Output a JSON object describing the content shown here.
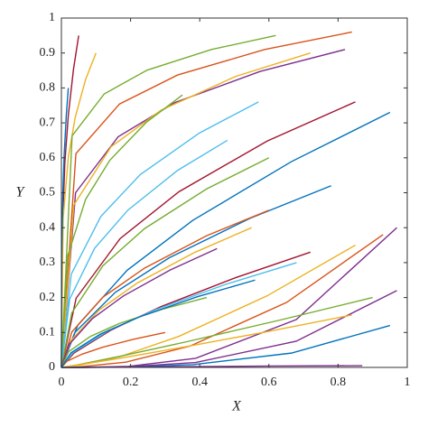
{
  "chart_data": {
    "type": "line",
    "xlabel": "X",
    "ylabel": "Y",
    "xlim": [
      0,
      1
    ],
    "ylim": [
      0,
      1
    ],
    "xticks": [
      0,
      0.2,
      0.4,
      0.6,
      0.8,
      1
    ],
    "yticks": [
      0,
      0.1,
      0.2,
      0.3,
      0.4,
      0.5,
      0.6,
      0.7,
      0.8,
      0.9,
      1
    ],
    "series": [
      {
        "color": "#A2142F",
        "x": [
          0,
          0.0025,
          0.01,
          0.02,
          0.035,
          0.05
        ],
        "values": [
          0,
          0.387,
          0.586,
          0.722,
          0.854,
          0.95
        ]
      },
      {
        "color": "#EDB120",
        "x": [
          0,
          0.005,
          0.02,
          0.04,
          0.07,
          0.1
        ],
        "values": [
          0,
          0.426,
          0.602,
          0.716,
          0.824,
          0.9
        ]
      },
      {
        "color": "#77AC30",
        "x": [
          0,
          0.031,
          0.124,
          0.248,
          0.434,
          0.62
        ],
        "values": [
          0,
          0.663,
          0.783,
          0.851,
          0.91,
          0.95
        ]
      },
      {
        "color": "#D95319",
        "x": [
          0,
          0.042,
          0.168,
          0.336,
          0.588,
          0.84
        ],
        "values": [
          0,
          0.612,
          0.754,
          0.837,
          0.91,
          0.96
        ]
      },
      {
        "color": "#7E2F8E",
        "x": [
          0,
          0.041,
          0.164,
          0.328,
          0.574,
          0.82
        ],
        "values": [
          0,
          0.5,
          0.66,
          0.758,
          0.847,
          0.91
        ]
      },
      {
        "color": "#EDB120",
        "x": [
          0,
          0.036,
          0.144,
          0.288,
          0.504,
          0.72
        ],
        "values": [
          0,
          0.465,
          0.632,
          0.736,
          0.833,
          0.9
        ]
      },
      {
        "color": "#77AC30",
        "x": [
          0,
          0.0175,
          0.07,
          0.14,
          0.245,
          0.35
        ],
        "values": [
          0,
          0.317,
          0.481,
          0.593,
          0.701,
          0.78
        ]
      },
      {
        "color": "#4DBEEE",
        "x": [
          0,
          0.0285,
          0.114,
          0.228,
          0.399,
          0.57
        ],
        "values": [
          0,
          0.267,
          0.432,
          0.552,
          0.671,
          0.76
        ]
      },
      {
        "color": "#A2142F",
        "x": [
          0,
          0.0425,
          0.17,
          0.34,
          0.595,
          0.85
        ],
        "values": [
          0,
          0.198,
          0.369,
          0.503,
          0.648,
          0.76
        ]
      },
      {
        "color": "#0072BD",
        "x": [
          0,
          0.0475,
          0.19,
          0.38,
          0.665,
          0.95
        ],
        "values": [
          0,
          0.121,
          0.278,
          0.421,
          0.589,
          0.73
        ]
      },
      {
        "color": "#4DBEEE",
        "x": [
          0,
          0.024,
          0.096,
          0.192,
          0.336,
          0.48
        ],
        "values": [
          0,
          0.196,
          0.341,
          0.45,
          0.564,
          0.65
        ]
      },
      {
        "color": "#77AC30",
        "x": [
          0,
          0.03,
          0.12,
          0.24,
          0.42,
          0.6
        ],
        "values": [
          0,
          0.156,
          0.291,
          0.397,
          0.511,
          0.6
        ]
      },
      {
        "color": "#0072BD",
        "x": [
          0,
          0.039,
          0.156,
          0.312,
          0.546,
          0.78
        ],
        "values": [
          0,
          0.1,
          0.215,
          0.314,
          0.427,
          0.52
        ]
      },
      {
        "color": "#D95319",
        "x": [
          0,
          0.03,
          0.12,
          0.24,
          0.42,
          0.6
        ],
        "values": [
          0,
          0.101,
          0.201,
          0.284,
          0.377,
          0.45
        ]
      },
      {
        "color": "#EDB120",
        "x": [
          0,
          0.0275,
          0.11,
          0.22,
          0.385,
          0.55
        ],
        "values": [
          0,
          0.077,
          0.165,
          0.242,
          0.329,
          0.4
        ]
      },
      {
        "color": "#7E2F8E",
        "x": [
          0,
          0.0225,
          0.09,
          0.18,
          0.315,
          0.45
        ],
        "values": [
          0,
          0.066,
          0.14,
          0.205,
          0.279,
          0.34
        ]
      },
      {
        "color": "#7E2F8E",
        "x": [
          0,
          0.0485,
          0.194,
          0.388,
          0.679,
          0.97
        ],
        "values": [
          0,
          0,
          0.003,
          0.026,
          0.137,
          0.4
        ]
      },
      {
        "color": "#D95319",
        "x": [
          0,
          0.0465,
          0.186,
          0.372,
          0.651,
          0.93
        ],
        "values": [
          0,
          0.001,
          0.015,
          0.061,
          0.186,
          0.38
        ]
      },
      {
        "color": "#EDB120",
        "x": [
          0,
          0.0425,
          0.17,
          0.34,
          0.595,
          0.85
        ],
        "values": [
          0,
          0.004,
          0.031,
          0.089,
          0.205,
          0.35
        ]
      },
      {
        "color": "#7E2F8E",
        "x": [
          0,
          0.0485,
          0.194,
          0.388,
          0.679,
          0.97
        ],
        "values": [
          0,
          0,
          0.002,
          0.014,
          0.075,
          0.22
        ]
      },
      {
        "color": "#0072BD",
        "x": [
          0,
          0.0475,
          0.19,
          0.38,
          0.665,
          0.95
        ],
        "values": [
          0,
          0,
          0.001,
          0.008,
          0.041,
          0.12
        ]
      },
      {
        "color": "#A2142F",
        "x": [
          0,
          0.036,
          0.144,
          0.288,
          0.504,
          0.72
        ],
        "values": [
          0,
          0.041,
          0.107,
          0.174,
          0.257,
          0.33
        ]
      },
      {
        "color": "#4DBEEE",
        "x": [
          0,
          0.034,
          0.136,
          0.272,
          0.476,
          0.68
        ],
        "values": [
          0,
          0.043,
          0.105,
          0.165,
          0.238,
          0.3
        ]
      },
      {
        "color": "#77AC30",
        "x": [
          0,
          0.021,
          0.084,
          0.168,
          0.294,
          0.42
        ],
        "values": [
          0,
          0.045,
          0.089,
          0.126,
          0.167,
          0.2
        ]
      },
      {
        "color": "#77AC30",
        "x": [
          0,
          0.045,
          0.18,
          0.36,
          0.63,
          0.9
        ],
        "values": [
          0,
          0.007,
          0.034,
          0.073,
          0.135,
          0.2
        ]
      },
      {
        "color": "#EDB120",
        "x": [
          0,
          0.042,
          0.168,
          0.336,
          0.588,
          0.84
        ],
        "values": [
          0,
          0.006,
          0.026,
          0.055,
          0.101,
          0.15
        ]
      },
      {
        "color": "#D95319",
        "x": [
          0,
          0.015,
          0.06,
          0.12,
          0.21,
          0.3
        ],
        "values": [
          0,
          0.017,
          0.038,
          0.058,
          0.081,
          0.1
        ]
      },
      {
        "color": "#7E2F8E",
        "x": [
          0,
          0.0435,
          0.174,
          0.348,
          0.609,
          0.87
        ],
        "values": [
          0,
          0,
          0.001,
          0.002,
          0.004,
          0.005
        ]
      },
      {
        "color": "#0072BD",
        "x": [
          0,
          0.001,
          0.004,
          0.008,
          0.014,
          0.02
        ],
        "values": [
          0,
          0.326,
          0.494,
          0.608,
          0.719,
          0.8
        ]
      },
      {
        "color": "#0072BD",
        "x": [
          0,
          0.028,
          0.112,
          0.224,
          0.392,
          0.56
        ],
        "values": [
          0,
          0.042,
          0.095,
          0.144,
          0.202,
          0.25
        ]
      }
    ]
  }
}
